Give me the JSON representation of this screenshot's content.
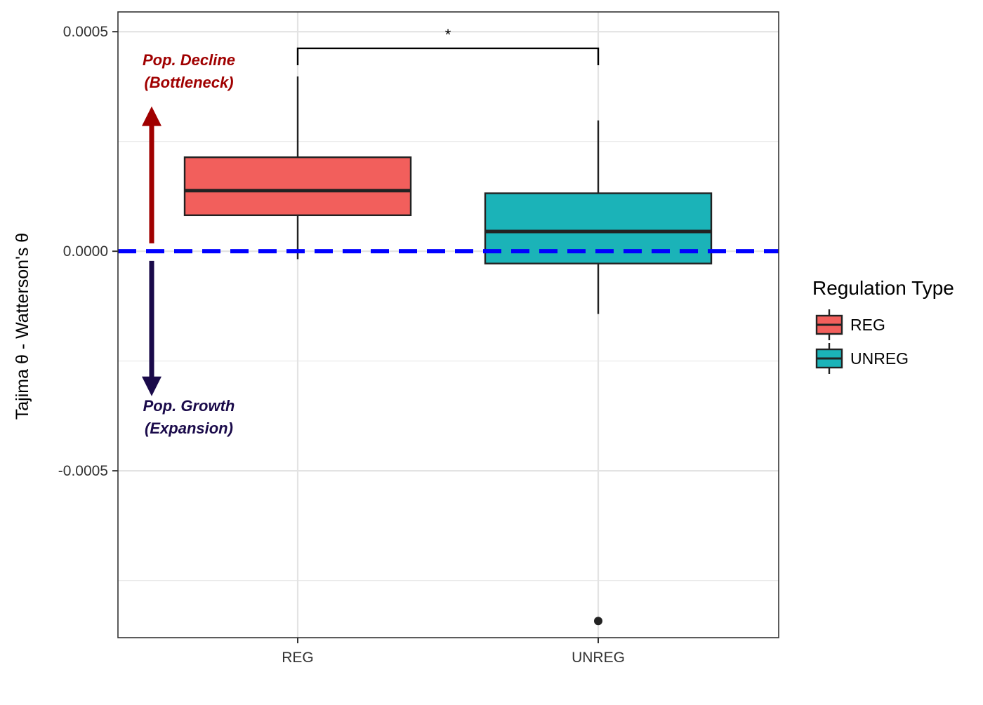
{
  "chart_data": {
    "type": "box",
    "title": "",
    "xlabel": "",
    "ylabel": "Tajima θ - Watterson's θ",
    "ylim": [
      -0.00088,
      0.000545
    ],
    "categories": [
      "REG",
      "UNREG"
    ],
    "y_ticks": [
      0.0005,
      0.0,
      -0.0005
    ],
    "y_tick_labels": [
      "0.0005",
      "0.0000",
      "-0.0005"
    ],
    "minor_gridlines": [
      0.00025,
      -0.00025,
      -0.00075
    ],
    "grid": true,
    "boxes": [
      {
        "category": "REG",
        "whisker_low": -1.8e-05,
        "q1": 8.2e-05,
        "median": 0.000138,
        "q3": 0.000214,
        "whisker_high": 0.000398,
        "outliers": []
      },
      {
        "category": "UNREG",
        "whisker_low": -0.000143,
        "q1": -2.8e-05,
        "median": 4.5e-05,
        "q3": 0.000132,
        "whisker_high": 0.000298,
        "outliers": [
          -0.000842
        ]
      }
    ],
    "reference_line": {
      "y": 0.0,
      "color": "#0000ff",
      "style": "dashed"
    },
    "significance": {
      "between": [
        "REG",
        "UNREG"
      ],
      "y": 0.000462,
      "label": "*"
    },
    "annotations": {
      "up": {
        "lines": [
          "Pop. Decline",
          "(Bottleneck)"
        ],
        "color": "#a00000",
        "arrow_from": 1.8e-05,
        "arrow_to": 0.00033
      },
      "down": {
        "lines": [
          "Pop. Growth",
          "(Expansion)"
        ],
        "color": "#1a0a4a",
        "arrow_from": -2.2e-05,
        "arrow_to": -0.00033
      }
    },
    "legend": {
      "title": "Regulation Type",
      "position": "right",
      "items": [
        {
          "label": "REG",
          "color": "#f25f5c"
        },
        {
          "label": "UNREG",
          "color": "#1bb3b8"
        }
      ]
    }
  }
}
